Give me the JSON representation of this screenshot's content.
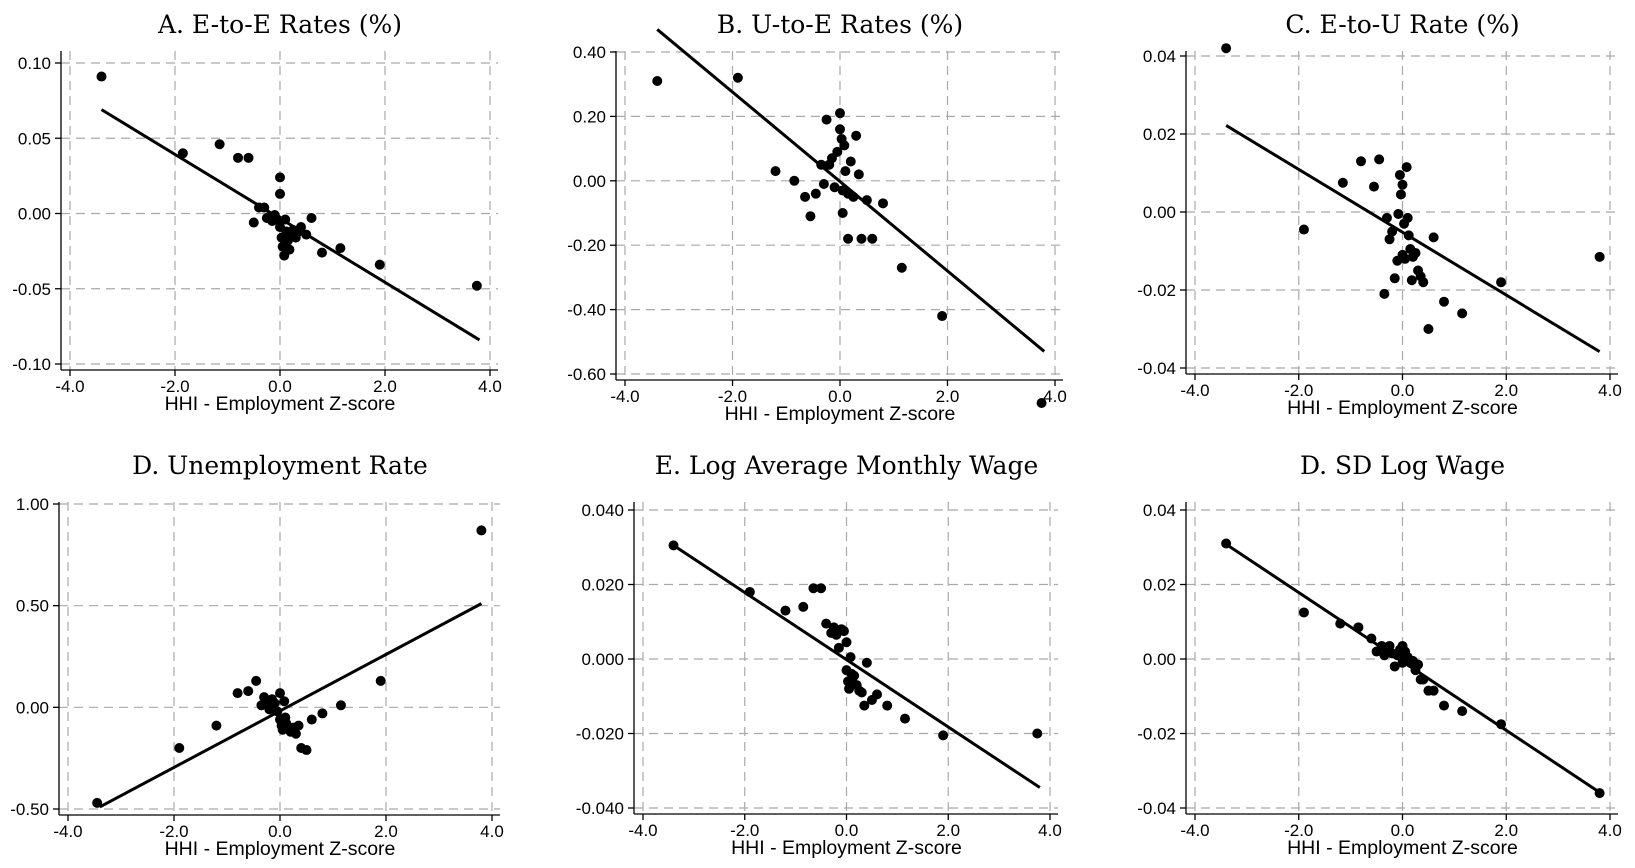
{
  "chart_data": [
    {
      "type": "scatter",
      "title": "A. E-to-E Rates (%)",
      "xlabel": "HHI - Employment Z-score",
      "ylabel": "",
      "xlim": [
        -4.0,
        4.0
      ],
      "ylim": [
        -0.1,
        0.1
      ],
      "xticks": [
        -4.0,
        -2.0,
        0.0,
        2.0,
        4.0
      ],
      "xtick_labels": [
        "-4.0",
        "-2.0",
        "0.0",
        "2.0",
        "4.0"
      ],
      "yticks": [
        -0.1,
        -0.05,
        0.0,
        0.05,
        0.1
      ],
      "ytick_labels": [
        "-0.10",
        "-0.05",
        "0.00",
        "0.05",
        "0.10"
      ],
      "grid": true,
      "fit_line": {
        "x": [
          -3.4,
          3.8
        ],
        "y": [
          0.069,
          -0.084
        ]
      },
      "points": [
        [
          -3.4,
          0.091
        ],
        [
          -1.85,
          0.04
        ],
        [
          -1.15,
          0.046
        ],
        [
          -0.8,
          0.037
        ],
        [
          -0.6,
          0.037
        ],
        [
          -0.5,
          -0.006
        ],
        [
          -0.4,
          0.004
        ],
        [
          -0.3,
          0.004
        ],
        [
          -0.25,
          -0.003
        ],
        [
          -0.2,
          -0.002
        ],
        [
          -0.15,
          -0.005
        ],
        [
          -0.1,
          -0.001
        ],
        [
          -0.05,
          -0.004
        ],
        [
          0.0,
          0.024
        ],
        [
          0.0,
          0.013
        ],
        [
          0.0,
          -0.009
        ],
        [
          0.03,
          -0.016
        ],
        [
          0.05,
          -0.022
        ],
        [
          0.08,
          -0.028
        ],
        [
          0.1,
          -0.004
        ],
        [
          0.12,
          -0.012
        ],
        [
          0.15,
          -0.018
        ],
        [
          0.18,
          -0.024
        ],
        [
          0.2,
          -0.013
        ],
        [
          0.25,
          -0.011
        ],
        [
          0.3,
          -0.016
        ],
        [
          0.35,
          -0.012
        ],
        [
          0.4,
          -0.009
        ],
        [
          0.5,
          -0.014
        ],
        [
          0.6,
          -0.003
        ],
        [
          0.8,
          -0.026
        ],
        [
          1.15,
          -0.023
        ],
        [
          1.9,
          -0.034
        ],
        [
          3.75,
          -0.048
        ]
      ]
    },
    {
      "type": "scatter",
      "title": "B. U-to-E Rates (%)",
      "xlabel": "HHI - Employment Z-score",
      "ylabel": "",
      "xlim": [
        -4.0,
        4.0
      ],
      "ylim": [
        -0.6,
        0.4
      ],
      "xticks": [
        -4.0,
        -2.0,
        0.0,
        2.0,
        4.0
      ],
      "xtick_labels": [
        "-4.0",
        "-2.0",
        "0.0",
        "2.0",
        "4.0"
      ],
      "yticks": [
        -0.6,
        -0.4,
        -0.2,
        0.0,
        0.2,
        0.4
      ],
      "ytick_labels": [
        "-0.60",
        "-0.40",
        "-0.20",
        "0.00",
        "0.20",
        "0.40"
      ],
      "grid": true,
      "fit_line": {
        "x": [
          -3.4,
          3.8
        ],
        "y": [
          0.47,
          -0.53
        ]
      },
      "points": [
        [
          -3.4,
          0.31
        ],
        [
          -1.9,
          0.32
        ],
        [
          -1.2,
          0.03
        ],
        [
          -0.85,
          0.0
        ],
        [
          -0.65,
          -0.05
        ],
        [
          -0.55,
          -0.11
        ],
        [
          -0.45,
          -0.04
        ],
        [
          -0.35,
          0.05
        ],
        [
          -0.3,
          -0.01
        ],
        [
          -0.25,
          0.19
        ],
        [
          -0.2,
          0.05
        ],
        [
          -0.15,
          0.07
        ],
        [
          -0.1,
          -0.02
        ],
        [
          -0.05,
          0.09
        ],
        [
          0.0,
          0.21
        ],
        [
          0.0,
          0.16
        ],
        [
          0.03,
          0.13
        ],
        [
          0.05,
          -0.03
        ],
        [
          0.05,
          -0.1
        ],
        [
          0.08,
          0.11
        ],
        [
          0.1,
          0.03
        ],
        [
          0.15,
          -0.04
        ],
        [
          0.15,
          -0.18
        ],
        [
          0.2,
          0.06
        ],
        [
          0.25,
          -0.05
        ],
        [
          0.3,
          0.14
        ],
        [
          0.35,
          0.02
        ],
        [
          0.4,
          -0.18
        ],
        [
          0.5,
          -0.06
        ],
        [
          0.6,
          -0.18
        ],
        [
          0.8,
          -0.07
        ],
        [
          1.15,
          -0.27
        ],
        [
          1.9,
          -0.42
        ],
        [
          3.75,
          -0.69
        ]
      ]
    },
    {
      "type": "scatter",
      "title": "C. E-to-U Rate (%)",
      "xlabel": "HHI - Employment Z-score",
      "ylabel": "",
      "xlim": [
        -4.0,
        4.0
      ],
      "ylim": [
        -0.04,
        0.04
      ],
      "xticks": [
        -4.0,
        -2.0,
        0.0,
        2.0,
        4.0
      ],
      "xtick_labels": [
        "-4.0",
        "-2.0",
        "0.0",
        "2.0",
        "4.0"
      ],
      "yticks": [
        -0.04,
        -0.02,
        0.0,
        0.02,
        0.04
      ],
      "ytick_labels": [
        "-0.04",
        "-0.02",
        "0.00",
        "0.02",
        "0.04"
      ],
      "grid": true,
      "fit_line": {
        "x": [
          -3.4,
          3.8
        ],
        "y": [
          0.0222,
          -0.0358
        ]
      },
      "points": [
        [
          -3.4,
          0.042
        ],
        [
          -1.9,
          -0.0045
        ],
        [
          -1.15,
          0.0075
        ],
        [
          -0.8,
          0.013
        ],
        [
          -0.55,
          0.0065
        ],
        [
          -0.45,
          0.0135
        ],
        [
          -0.35,
          -0.021
        ],
        [
          -0.3,
          -0.0015
        ],
        [
          -0.25,
          -0.007
        ],
        [
          -0.2,
          -0.005
        ],
        [
          -0.15,
          -0.017
        ],
        [
          -0.1,
          -0.0125
        ],
        [
          -0.08,
          -0.0005
        ],
        [
          -0.05,
          0.0095
        ],
        [
          -0.03,
          0.0045
        ],
        [
          0.0,
          0.007
        ],
        [
          0.0,
          -0.011
        ],
        [
          0.03,
          -0.003
        ],
        [
          0.05,
          -0.012
        ],
        [
          0.08,
          0.0115
        ],
        [
          0.1,
          -0.0015
        ],
        [
          0.12,
          -0.006
        ],
        [
          0.15,
          -0.0095
        ],
        [
          0.18,
          -0.0175
        ],
        [
          0.2,
          -0.0115
        ],
        [
          0.25,
          -0.0105
        ],
        [
          0.3,
          -0.015
        ],
        [
          0.35,
          -0.0165
        ],
        [
          0.4,
          -0.018
        ],
        [
          0.5,
          -0.03
        ],
        [
          0.6,
          -0.0065
        ],
        [
          0.8,
          -0.023
        ],
        [
          1.15,
          -0.026
        ],
        [
          1.9,
          -0.018
        ],
        [
          3.8,
          -0.0115
        ]
      ]
    },
    {
      "type": "scatter",
      "title": "D. Unemployment Rate",
      "xlabel": "HHI - Employment Z-score",
      "ylabel": "",
      "xlim": [
        -4.0,
        4.0
      ],
      "ylim": [
        -0.5,
        1.0
      ],
      "xticks": [
        -4.0,
        -2.0,
        0.0,
        2.0,
        4.0
      ],
      "xtick_labels": [
        "-4.0",
        "-2.0",
        "0.0",
        "2.0",
        "4.0"
      ],
      "yticks": [
        -0.5,
        0.0,
        0.5,
        1.0
      ],
      "ytick_labels": [
        "-0.50",
        "0.00",
        "0.50",
        "1.00"
      ],
      "grid": true,
      "fit_line": {
        "x": [
          -3.4,
          3.8
        ],
        "y": [
          -0.49,
          0.51
        ]
      },
      "points": [
        [
          -3.45,
          -0.47
        ],
        [
          -1.9,
          -0.2
        ],
        [
          -1.2,
          -0.09
        ],
        [
          -0.8,
          0.07
        ],
        [
          -0.6,
          0.08
        ],
        [
          -0.45,
          0.13
        ],
        [
          -0.35,
          0.01
        ],
        [
          -0.3,
          0.05
        ],
        [
          -0.25,
          0.03
        ],
        [
          -0.2,
          -0.01
        ],
        [
          -0.15,
          0.04
        ],
        [
          -0.1,
          0.02
        ],
        [
          -0.05,
          -0.02
        ],
        [
          0.0,
          0.07
        ],
        [
          0.0,
          -0.06
        ],
        [
          0.03,
          -0.09
        ],
        [
          0.05,
          -0.11
        ],
        [
          0.08,
          0.03
        ],
        [
          0.1,
          -0.05
        ],
        [
          0.12,
          -0.08
        ],
        [
          0.15,
          -0.1
        ],
        [
          0.2,
          -0.12
        ],
        [
          0.25,
          -0.1
        ],
        [
          0.3,
          -0.13
        ],
        [
          0.35,
          -0.09
        ],
        [
          0.4,
          -0.2
        ],
        [
          0.5,
          -0.21
        ],
        [
          0.6,
          -0.06
        ],
        [
          0.8,
          -0.03
        ],
        [
          1.15,
          0.01
        ],
        [
          1.9,
          0.13
        ],
        [
          3.8,
          0.87
        ]
      ]
    },
    {
      "type": "scatter",
      "title": "E. Log Average Monthly Wage",
      "xlabel": "HHI - Employment Z-score",
      "ylabel": "",
      "xlim": [
        -4.0,
        4.0
      ],
      "ylim": [
        -0.04,
        0.04
      ],
      "xticks": [
        -4.0,
        -2.0,
        0.0,
        2.0,
        4.0
      ],
      "xtick_labels": [
        "-4.0",
        "-2.0",
        "0.0",
        "2.0",
        "4.0"
      ],
      "yticks": [
        -0.04,
        -0.02,
        0.0,
        0.02,
        0.04
      ],
      "ytick_labels": [
        "-0.040",
        "-0.020",
        "0.000",
        "0.020",
        "0.040"
      ],
      "grid": true,
      "fit_line": {
        "x": [
          -3.4,
          3.8
        ],
        "y": [
          0.0305,
          -0.0345
        ]
      },
      "points": [
        [
          -3.4,
          0.0305
        ],
        [
          -1.9,
          0.018
        ],
        [
          -1.2,
          0.013
        ],
        [
          -0.85,
          0.014
        ],
        [
          -0.65,
          0.019
        ],
        [
          -0.5,
          0.019
        ],
        [
          -0.4,
          0.0095
        ],
        [
          -0.3,
          0.007
        ],
        [
          -0.25,
          0.0085
        ],
        [
          -0.2,
          0.0065
        ],
        [
          -0.15,
          0.003
        ],
        [
          -0.1,
          0.008
        ],
        [
          -0.05,
          0.0075
        ],
        [
          0.0,
          0.0045
        ],
        [
          0.0,
          -0.003
        ],
        [
          0.03,
          -0.006
        ],
        [
          0.05,
          -0.008
        ],
        [
          0.08,
          0.0005
        ],
        [
          0.1,
          -0.004
        ],
        [
          0.12,
          -0.005
        ],
        [
          0.15,
          -0.0045
        ],
        [
          0.2,
          -0.007
        ],
        [
          0.25,
          -0.0085
        ],
        [
          0.3,
          -0.009
        ],
        [
          0.35,
          -0.0125
        ],
        [
          0.4,
          -0.001
        ],
        [
          0.5,
          -0.011
        ],
        [
          0.6,
          -0.0095
        ],
        [
          0.8,
          -0.0125
        ],
        [
          1.15,
          -0.016
        ],
        [
          1.9,
          -0.0205
        ],
        [
          3.75,
          -0.02
        ]
      ]
    },
    {
      "type": "scatter",
      "title": "D. SD Log Wage",
      "xlabel": "HHI - Employment Z-score",
      "ylabel": "",
      "xlim": [
        -4.0,
        4.0
      ],
      "ylim": [
        -0.04,
        0.04
      ],
      "xticks": [
        -4.0,
        -2.0,
        0.0,
        2.0,
        4.0
      ],
      "xtick_labels": [
        "-4.0",
        "-2.0",
        "0.0",
        "2.0",
        "4.0"
      ],
      "yticks": [
        -0.04,
        -0.02,
        0.0,
        0.02,
        0.04
      ],
      "ytick_labels": [
        "-0.04",
        "-0.02",
        "0.00",
        "0.02",
        "0.04"
      ],
      "grid": true,
      "fit_line": {
        "x": [
          -3.4,
          3.8
        ],
        "y": [
          0.0308,
          -0.0358
        ]
      },
      "points": [
        [
          -3.4,
          0.031
        ],
        [
          -1.9,
          0.0125
        ],
        [
          -1.2,
          0.0095
        ],
        [
          -0.85,
          0.0085
        ],
        [
          -0.6,
          0.0055
        ],
        [
          -0.5,
          0.002
        ],
        [
          -0.4,
          0.0035
        ],
        [
          -0.35,
          0.001
        ],
        [
          -0.3,
          0.002
        ],
        [
          -0.25,
          0.0035
        ],
        [
          -0.2,
          0.0015
        ],
        [
          -0.15,
          -0.002
        ],
        [
          -0.1,
          0.001
        ],
        [
          -0.05,
          0.0025
        ],
        [
          0.0,
          0.0035
        ],
        [
          0.0,
          -0.001
        ],
        [
          0.03,
          0.0005
        ],
        [
          0.05,
          0.002
        ],
        [
          0.08,
          -0.0005
        ],
        [
          0.1,
          0.0005
        ],
        [
          0.15,
          -0.001
        ],
        [
          0.2,
          -0.0005
        ],
        [
          0.25,
          -0.003
        ],
        [
          0.3,
          -0.0015
        ],
        [
          0.35,
          -0.0055
        ],
        [
          0.4,
          -0.0055
        ],
        [
          0.5,
          -0.0085
        ],
        [
          0.6,
          -0.0085
        ],
        [
          0.8,
          -0.0125
        ],
        [
          1.15,
          -0.014
        ],
        [
          1.9,
          -0.0175
        ],
        [
          3.8,
          -0.036
        ]
      ]
    }
  ]
}
